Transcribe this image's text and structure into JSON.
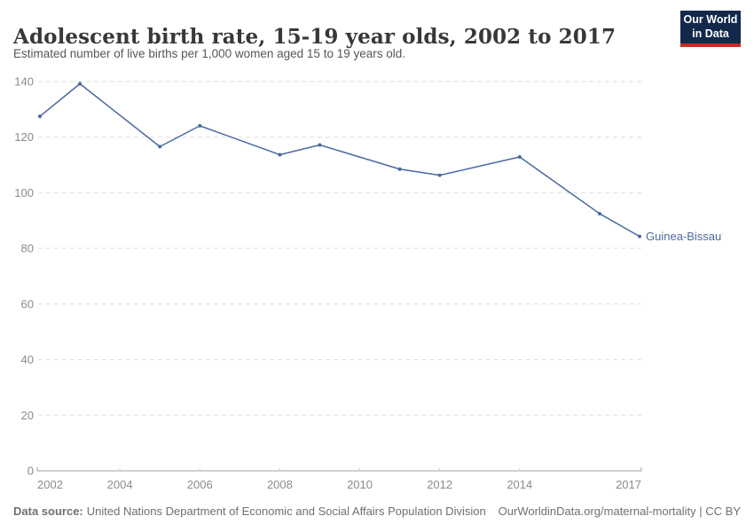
{
  "header": {
    "title": "Adolescent birth rate, 15-19 year olds, 2002 to 2017",
    "subtitle": "Estimated number of live births per 1,000 women aged 15 to 19 years old."
  },
  "logo": {
    "line1": "Our World",
    "line2": "in Data",
    "bg_color": "#12294B",
    "accent_color": "#C62A22"
  },
  "chart_data": {
    "type": "line",
    "series": [
      {
        "name": "Guinea-Bissau",
        "color": "#4B69A0",
        "x": [
          2002,
          2003,
          2005,
          2006,
          2008,
          2009,
          2011,
          2012,
          2014,
          2016,
          2017
        ],
        "y": [
          127.5,
          139.2,
          116.6,
          124.1,
          113.7,
          117.2,
          108.5,
          106.3,
          112.9,
          92.5,
          84.3
        ]
      }
    ],
    "title": "Adolescent birth rate, 15-19 year olds, 2002 to 2017",
    "xlabel": "",
    "ylabel": "",
    "xlim": [
      2002,
      2017
    ],
    "ylim": [
      0,
      140
    ],
    "xticks": [
      2002,
      2004,
      2006,
      2008,
      2010,
      2012,
      2014,
      2017
    ],
    "yticks": [
      0,
      20,
      40,
      60,
      80,
      100,
      120,
      140
    ],
    "grid": "horizontal-dashed",
    "legend_position": "end-of-line-label"
  },
  "footer": {
    "source_label": "Data source:",
    "source_text": "United Nations Department of Economic and Social Affairs Population Division",
    "link_text": "OurWorldinData.org/maternal-mortality | CC BY"
  },
  "colors": {
    "line": "#4B69A0",
    "grid": "#DEDEDE",
    "axis": "#A0A0A0",
    "tick": "#CCCCCC",
    "tick_label": "#8B8B8B",
    "title": "#383838",
    "subtitle": "#565656",
    "footer": "#716F6F"
  }
}
